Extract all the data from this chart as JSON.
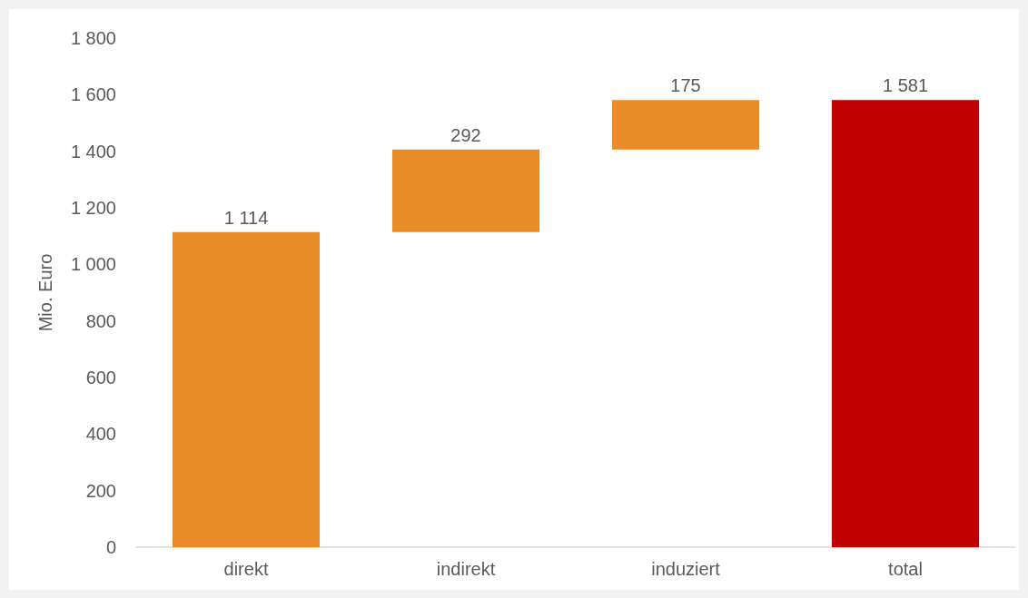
{
  "chart_data": {
    "type": "bar",
    "ylabel": "Mio. Euro",
    "categories": [
      "direkt",
      "indirekt",
      "induziert",
      "total"
    ],
    "values": [
      1114,
      292,
      175,
      1581
    ],
    "base": [
      0,
      1114,
      1406,
      0
    ],
    "colors": [
      "#e98c28",
      "#e98c28",
      "#e98c28",
      "#c00000"
    ],
    "value_labels": [
      "1 114",
      "292",
      "175",
      "1 581"
    ],
    "ylim": [
      0,
      1800
    ],
    "yticks": [
      0,
      200,
      400,
      600,
      800,
      {
        "value": 1000,
        "label": "1 000"
      },
      {
        "value": 1200,
        "label": "1 200"
      },
      {
        "value": 1400,
        "label": "1 400"
      },
      {
        "value": 1600,
        "label": "1 600"
      },
      {
        "value": 1800,
        "label": "1 800"
      }
    ],
    "grid": false
  }
}
